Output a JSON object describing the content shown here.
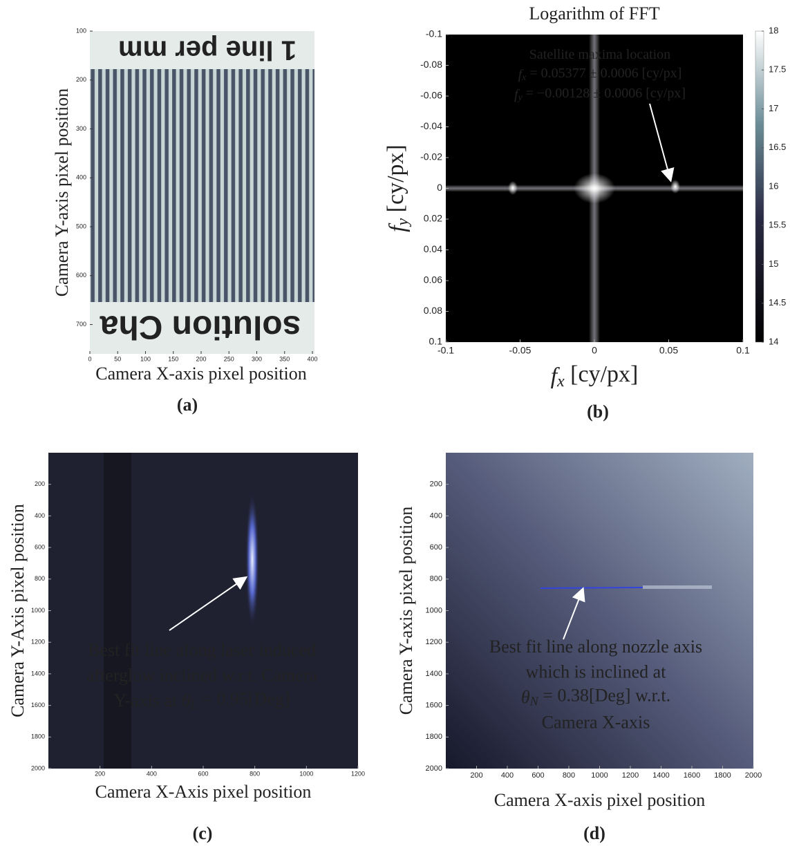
{
  "chart_data": [
    {
      "type": "image",
      "caption": "(a)",
      "xlabel": "Camera X-axis pixel position",
      "ylabel": "Camera Y-axis pixel position",
      "image_text": [
        "1 line per mm",
        "solution Cha"
      ],
      "xlim": [
        0,
        400
      ],
      "ylim": [
        760,
        100
      ],
      "xticks": [
        0,
        50,
        100,
        150,
        200,
        250,
        300,
        350,
        400
      ],
      "yticks": [
        100,
        200,
        300,
        400,
        500,
        600,
        700
      ]
    },
    {
      "type": "heatmap",
      "caption": "(b)",
      "title": "Logarithm of FFT",
      "xlabel": {
        "symbol": "f",
        "subscript": "x",
        "text": " [cy/px]"
      },
      "ylabel": {
        "symbol": "f",
        "subscript": "y",
        "text": " [cy/px]"
      },
      "annotation": [
        {
          "text": "Satellite maxima location"
        },
        {
          "symbol": "f",
          "subscript": "x",
          "text": " = 0.05377 ± 0.0006 [cy/px]"
        },
        {
          "symbol": "f",
          "subscript": "y",
          "text": " = −0.00128 ± 0.0006 [cy/px]"
        }
      ],
      "xlim": [
        -0.1,
        0.1
      ],
      "ylim": [
        0.1,
        -0.1
      ],
      "xticks": [
        -0.1,
        -0.05,
        0,
        0.05,
        0.1
      ],
      "yticks": [
        -0.1,
        -0.08,
        -0.06,
        -0.04,
        -0.02,
        0,
        0.02,
        0.04,
        0.06,
        0.08,
        0.1
      ],
      "colorbar": {
        "clim": [
          14,
          18
        ],
        "ticks": [
          14,
          14.5,
          15,
          15.5,
          16,
          16.5,
          17,
          17.5,
          18
        ]
      }
    },
    {
      "type": "image",
      "caption": "(c)",
      "xlabel": "Camera X-Axis pixel position",
      "ylabel": "Camera Y-Axis pixel position",
      "annotation": [
        {
          "text": "Best fit line along laser induced"
        },
        {
          "text": "afterglow inclined w.r.t. Camera"
        },
        {
          "prefix": "Y-axis at ",
          "symbol": "θ",
          "subscript": "L",
          "text": " = 0.95[Deg]"
        }
      ],
      "xlim": [
        0,
        1200
      ],
      "ylim": [
        2000,
        0
      ],
      "xticks": [
        200,
        400,
        600,
        800,
        1000,
        1200
      ],
      "yticks": [
        200,
        400,
        600,
        800,
        1000,
        1200,
        1400,
        1600,
        1800,
        2000
      ]
    },
    {
      "type": "image",
      "caption": "(d)",
      "xlabel": "Camera X-axis pixel position",
      "ylabel": "Camera Y-axis pixel position",
      "annotation": [
        {
          "text": "Best fit line along nozzle axis"
        },
        {
          "text": "which is inclined at"
        },
        {
          "symbol": "θ",
          "subscript": "N",
          "text": " = 0.38[Deg] w.r.t."
        },
        {
          "text": "Camera X-axis"
        }
      ],
      "xlim": [
        0,
        2000
      ],
      "ylim": [
        2000,
        0
      ],
      "xticks": [
        200,
        400,
        600,
        800,
        1000,
        1200,
        1400,
        1600,
        1800,
        2000
      ],
      "yticks": [
        200,
        400,
        600,
        800,
        1000,
        1200,
        1400,
        1600,
        1800,
        2000
      ]
    }
  ]
}
